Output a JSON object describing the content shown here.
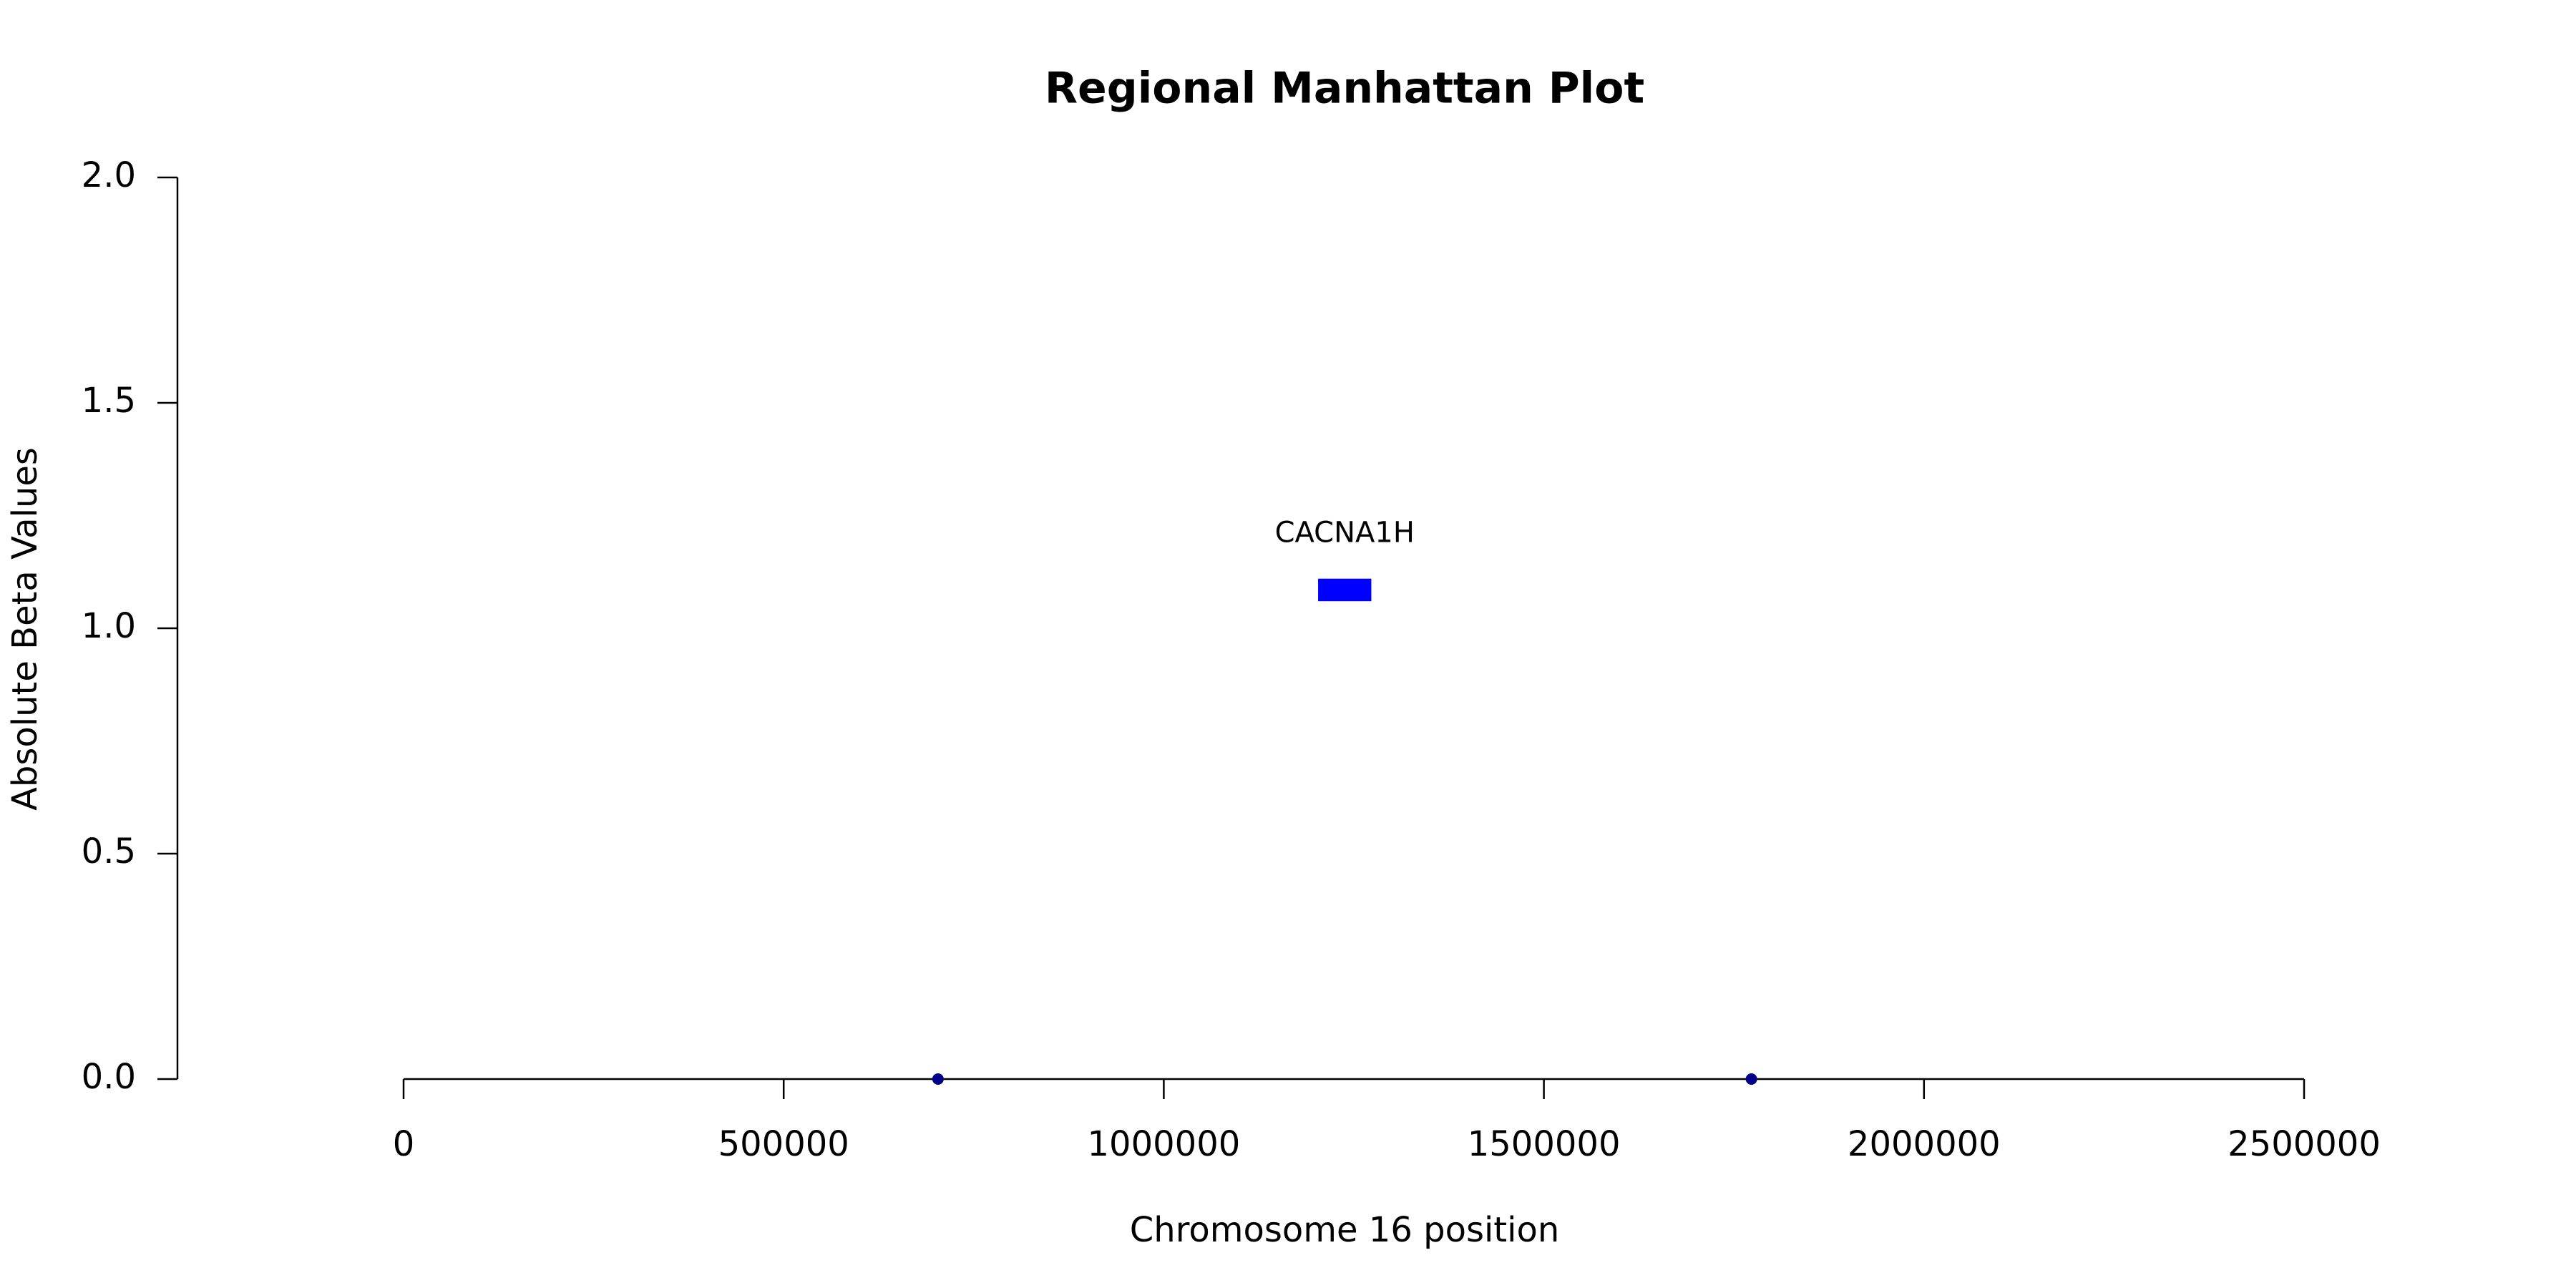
{
  "chart_data": {
    "type": "scatter",
    "title": "Regional Manhattan Plot",
    "x_label": "Chromosome 16 position",
    "y_label": "Absolute Beta Values",
    "series": [
      {
        "color": "#00008b",
        "x": [
          703000,
          1773000
        ],
        "values": [
          0,
          0
        ]
      }
    ],
    "genes": [
      {
        "name": "CACNA1H",
        "start": 1203000,
        "end": 1273000,
        "ymin": 1.06,
        "ymax": 1.11,
        "color": "#0000ff"
      }
    ],
    "xlim": [
      0,
      2500000
    ],
    "xticks": [
      0,
      500000,
      1000000,
      1500000,
      2000000,
      2500000
    ],
    "ylim": [
      0,
      2
    ],
    "yticks": [
      {
        "value": 0,
        "label": "0.0"
      },
      {
        "value": 0.5,
        "label": "0.5"
      },
      {
        "value": 1,
        "label": "1.0"
      },
      {
        "value": 1.5,
        "label": "1.5"
      },
      {
        "value": 2,
        "label": "2.0"
      }
    ],
    "grid": false
  }
}
